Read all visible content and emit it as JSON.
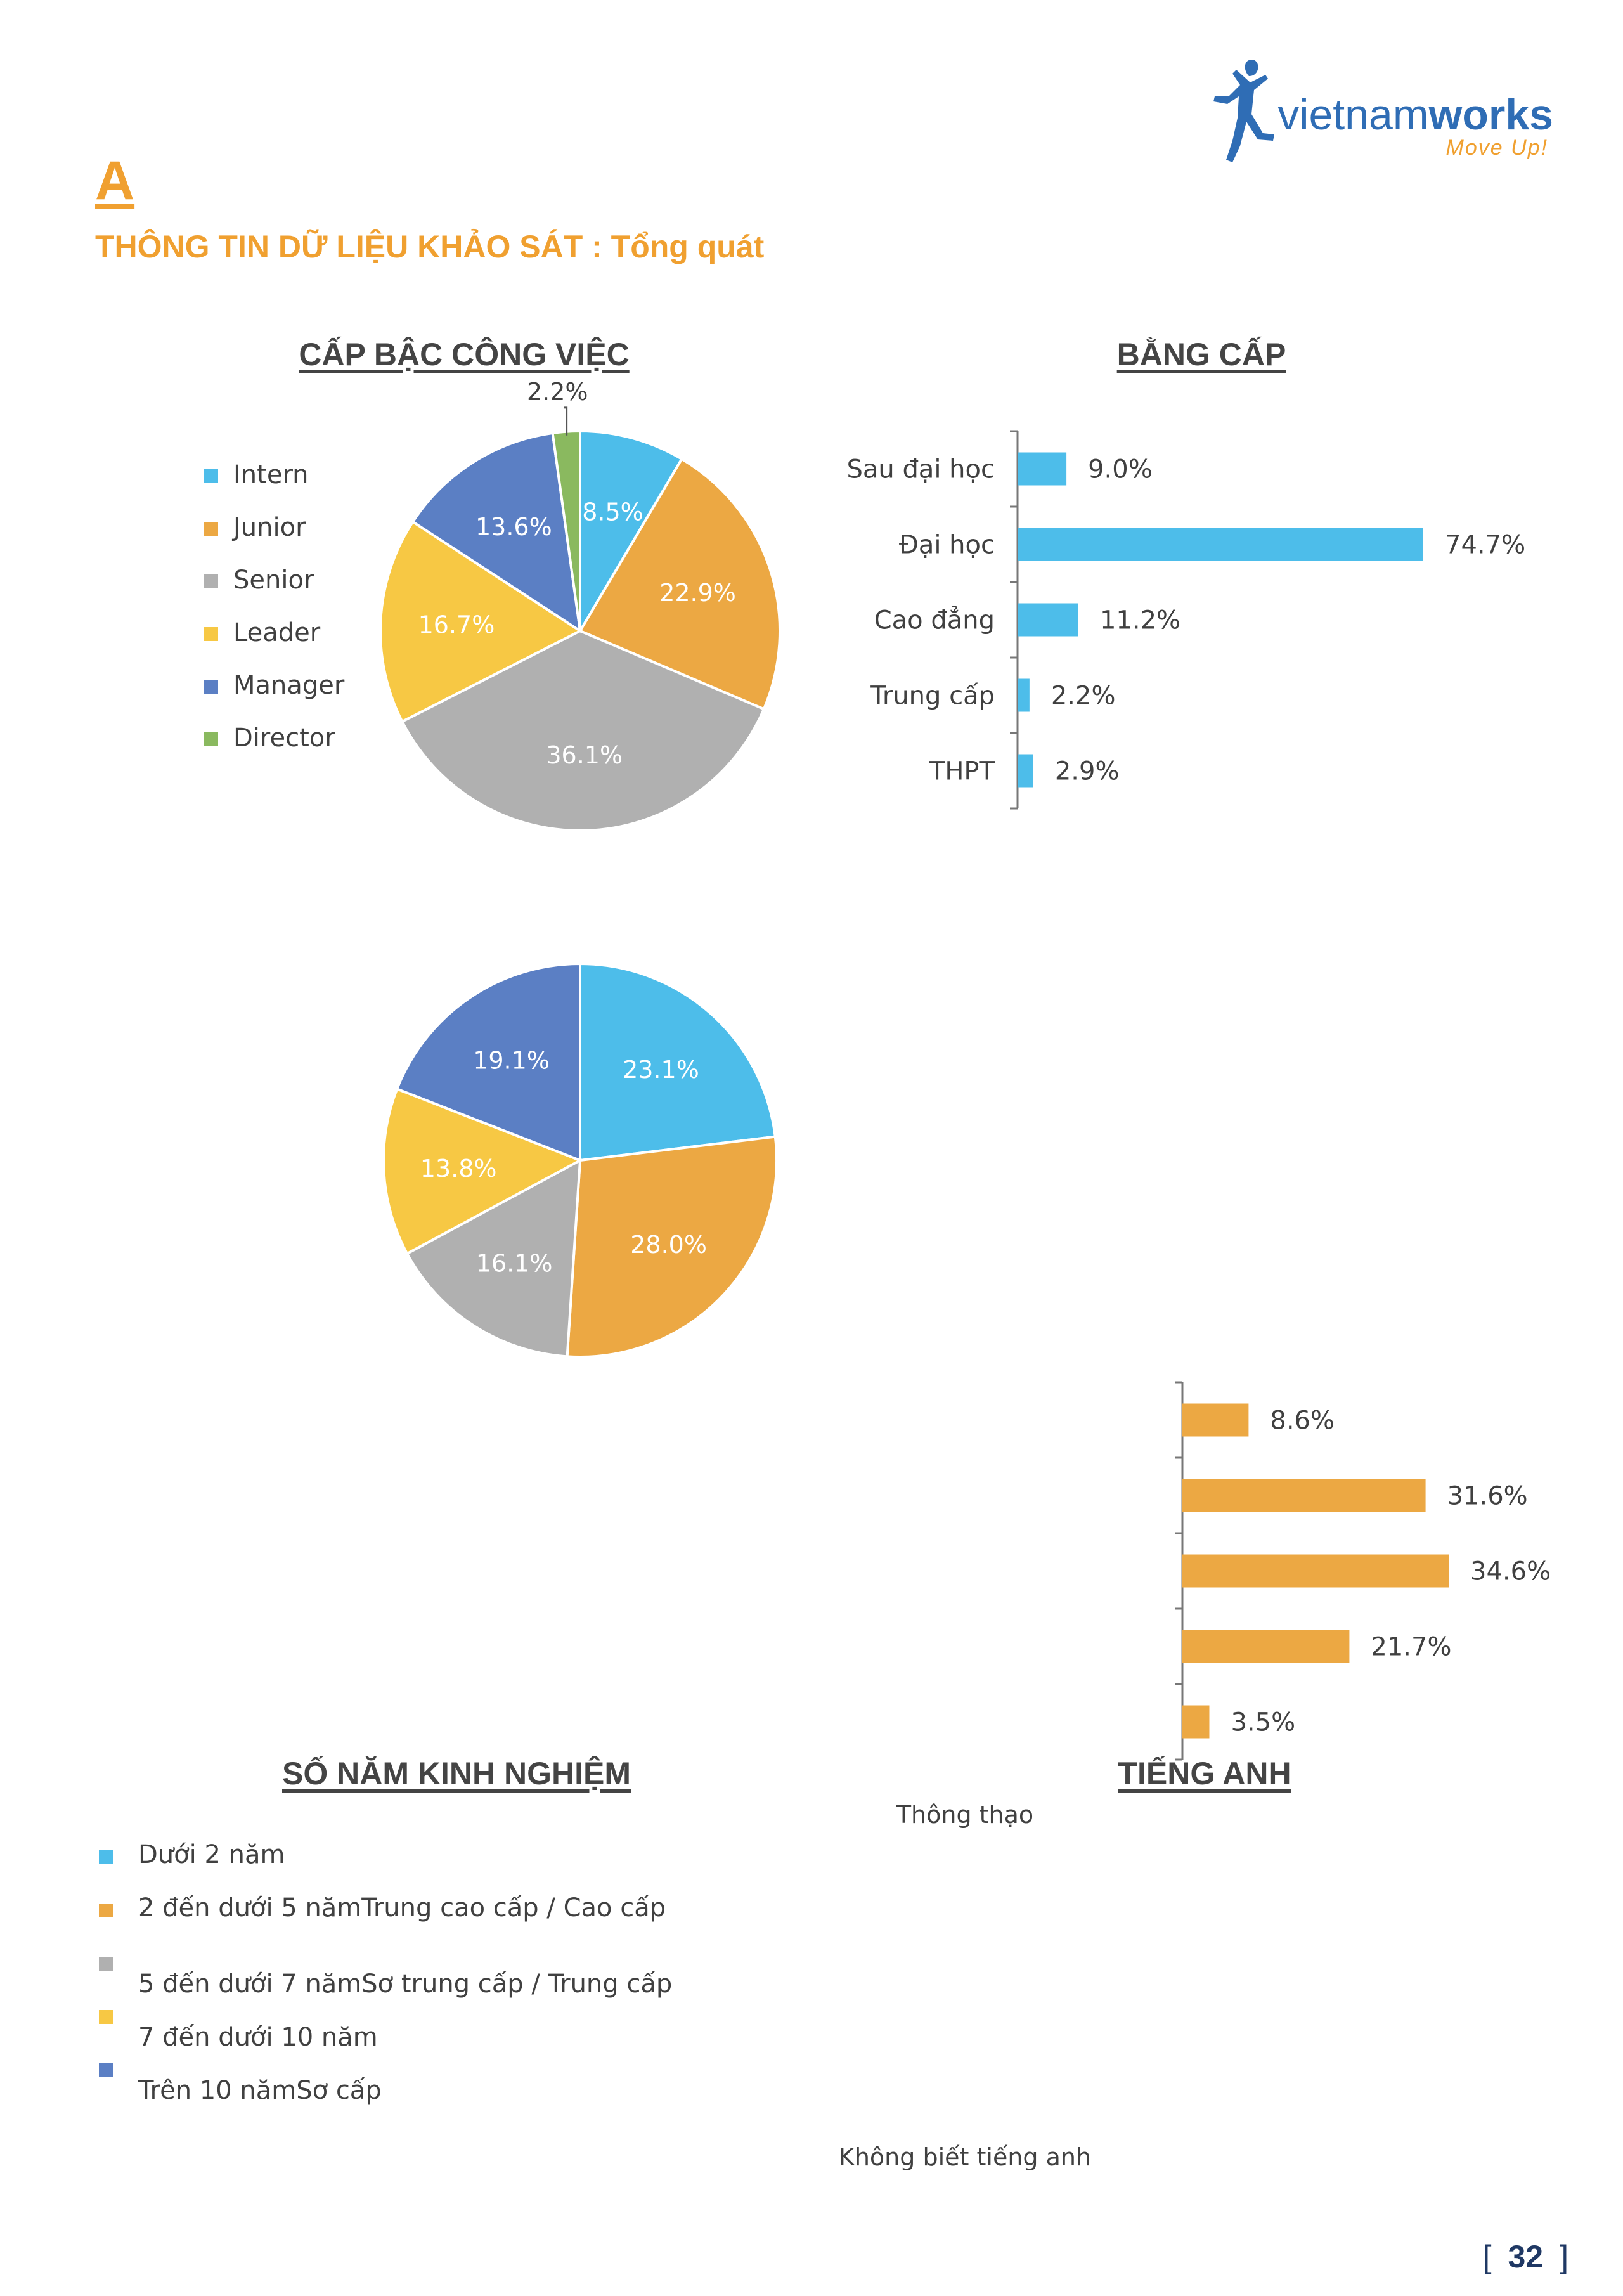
{
  "logo": {
    "name_part1": "vietnam",
    "name_part2": "works",
    "tagline": "Move Up!"
  },
  "section": {
    "letter": "A",
    "title": "THÔNG TIN DỮ LIỆU KHẢO SÁT : Tổng quát"
  },
  "page": {
    "open": "[",
    "number": "32",
    "close": "]"
  },
  "colors": {
    "accent": "#f0a030",
    "blue": "#4dbdea",
    "orange": "#eca843",
    "gray": "#b0b0b0",
    "yellow": "#f7c844",
    "darkblue": "#5b7fc4",
    "green": "#8ab95f"
  },
  "extra_labels": {
    "thong_thao": "Thông thạo",
    "khong_biet": "Không biết tiếng anh"
  },
  "chart_data": [
    {
      "type": "pie",
      "title": "CẤP BẬC CÔNG VIỆC",
      "categories": [
        "Intern",
        "Junior",
        "Senior",
        "Leader",
        "Manager",
        "Director"
      ],
      "values": [
        8.5,
        22.9,
        36.1,
        16.7,
        13.6,
        2.2
      ],
      "labels": [
        "8.5%",
        "22.9%",
        "36.1%",
        "16.7%",
        "13.6%",
        "2.2%"
      ],
      "colors": [
        "#4dbdea",
        "#eca843",
        "#b0b0b0",
        "#f7c844",
        "#5b7fc4",
        "#8ab95f"
      ],
      "legend": "left"
    },
    {
      "type": "bar",
      "orientation": "horizontal",
      "title": "BẰNG CẤP",
      "categories": [
        "Sau đại học",
        "Đại học",
        "Cao đẳng",
        "Trung cấp",
        "THPT"
      ],
      "values": [
        9.0,
        74.7,
        11.2,
        2.2,
        2.9
      ],
      "labels": [
        "9.0%",
        "74.7%",
        "11.2%",
        "2.2%",
        "2.9%"
      ],
      "color": "#4dbdea"
    },
    {
      "type": "pie",
      "title": "SỐ NĂM KINH NGHIỆM",
      "categories": [
        "Dưới 2 năm",
        "2 đến dưới 5 nămTrung cao cấp / Cao cấp",
        "5 đến dưới 7 nămSơ trung cấp / Trung cấp",
        "7 đến dưới 10 năm",
        "Trên 10 nămSơ cấp"
      ],
      "values": [
        23.1,
        28.0,
        16.1,
        13.8,
        19.1
      ],
      "labels": [
        "23.1%",
        "28.0%",
        "16.1%",
        "13.8%",
        "19.1%"
      ],
      "colors": [
        "#4dbdea",
        "#eca843",
        "#b0b0b0",
        "#f7c844",
        "#5b7fc4"
      ],
      "legend": "bottom-left"
    },
    {
      "type": "bar",
      "orientation": "horizontal",
      "title": "TIẾNG ANH",
      "values": [
        8.6,
        31.6,
        34.6,
        21.7,
        3.5
      ],
      "labels": [
        "8.6%",
        "31.6%",
        "34.6%",
        "21.7%",
        "3.5%"
      ],
      "color": "#eca843"
    }
  ]
}
